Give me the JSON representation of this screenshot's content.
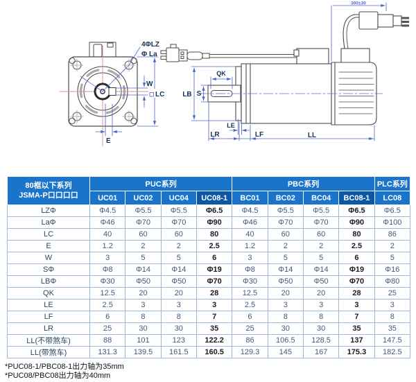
{
  "drawing": {
    "labels": {
      "four_holes": "4ΦLZ",
      "bolt_circle": "Φ La",
      "w": "W",
      "lc": "LC",
      "e": "E",
      "qk": "QK",
      "s": "S",
      "lb": "LB",
      "le": "LE",
      "lr": "LR",
      "lf": "LF",
      "ll": "LL",
      "cable_length": "300±30"
    },
    "colors": {
      "outline": "#4a4a4a",
      "dimension_line": "#4f63c8",
      "dimension_label": "#14305a",
      "centerline_red": "#dc8f8f",
      "slot_gray": "#9a9a9a"
    }
  },
  "table": {
    "corner_header": {
      "line1": "80框以下系列",
      "line2": "JSMA-P口口口口"
    },
    "groups": [
      {
        "label": "PUC系列",
        "span": 4
      },
      {
        "label": "PBC系列",
        "span": 4
      },
      {
        "label": "PLC系列",
        "span": 1
      }
    ],
    "columns": [
      "UC01",
      "UC02",
      "UC04",
      "UC08-1",
      "BC01",
      "BC02",
      "BC04",
      "BC08-1",
      "LC08"
    ],
    "highlighted_columns": [
      "UC08-1",
      "BC08-1"
    ],
    "rows": [
      {
        "label": "LZΦ",
        "values": [
          "Φ4.5",
          "Φ5.5",
          "Φ5.5",
          "Φ6.5",
          "Φ4.5",
          "Φ5.5",
          "Φ5.5",
          "Φ6.5",
          "Φ6.5"
        ]
      },
      {
        "label": "LaΦ",
        "values": [
          "Φ46",
          "Φ70",
          "Φ70",
          "Φ90",
          "Φ46",
          "Φ70",
          "Φ70",
          "Φ90",
          "Φ100"
        ]
      },
      {
        "label": "LC",
        "values": [
          "40",
          "60",
          "60",
          "80",
          "40",
          "60",
          "60",
          "80",
          "86"
        ]
      },
      {
        "label": "E",
        "values": [
          "1.2",
          "2",
          "2",
          "2.5",
          "1.2",
          "2",
          "2",
          "2.5",
          "2"
        ]
      },
      {
        "label": "W",
        "values": [
          "3",
          "5",
          "5",
          "6",
          "3",
          "5",
          "5",
          "6",
          "5"
        ]
      },
      {
        "label": "SΦ",
        "values": [
          "Φ8",
          "Φ14",
          "Φ14",
          "Φ19",
          "Φ8",
          "Φ14",
          "Φ14",
          "Φ19",
          "Φ16"
        ]
      },
      {
        "label": "LBΦ",
        "values": [
          "Φ30",
          "Φ50",
          "Φ50",
          "Φ70",
          "Φ30",
          "Φ50",
          "Φ50",
          "Φ70",
          "Φ80"
        ]
      },
      {
        "label": "QK",
        "values": [
          "12.5",
          "20",
          "20",
          "28",
          "12.5",
          "20",
          "20",
          "28",
          "25"
        ]
      },
      {
        "label": "LE",
        "values": [
          "2.5",
          "3",
          "3",
          "3",
          "2.5",
          "3",
          "3",
          "3",
          "3"
        ]
      },
      {
        "label": "LF",
        "values": [
          "6",
          "8",
          "8",
          "7",
          "6",
          "8",
          "8",
          "7",
          "8"
        ]
      },
      {
        "label": "LR",
        "values": [
          "25",
          "30",
          "30",
          "35",
          "25",
          "30",
          "30",
          "35",
          "35"
        ]
      },
      {
        "label": "LL(不带煞车)",
        "values": [
          "88",
          "101",
          "123",
          "122.2",
          "86",
          "106.5",
          "128.5",
          "137",
          "147.5"
        ]
      },
      {
        "label": "LL(带煞车)",
        "values": [
          "131.3",
          "139.5",
          "161.5",
          "160.5",
          "129.3",
          "145",
          "167",
          "175.3",
          "182.5"
        ]
      }
    ],
    "colors": {
      "header_bg": "#1a74cb",
      "header_highlight_bg": "#0e57a5",
      "body_border": "#9db9d9",
      "outer_border": "#6b8fb8",
      "value_text": "#3f5a7d",
      "label_text": "#2b4560",
      "highlight_value_text": "#1c1c1c"
    }
  },
  "footnotes": [
    "*PUC08-1/PBC08-1出力轴为35mm",
    "*PUC08/PBC08出力轴为40mm"
  ]
}
